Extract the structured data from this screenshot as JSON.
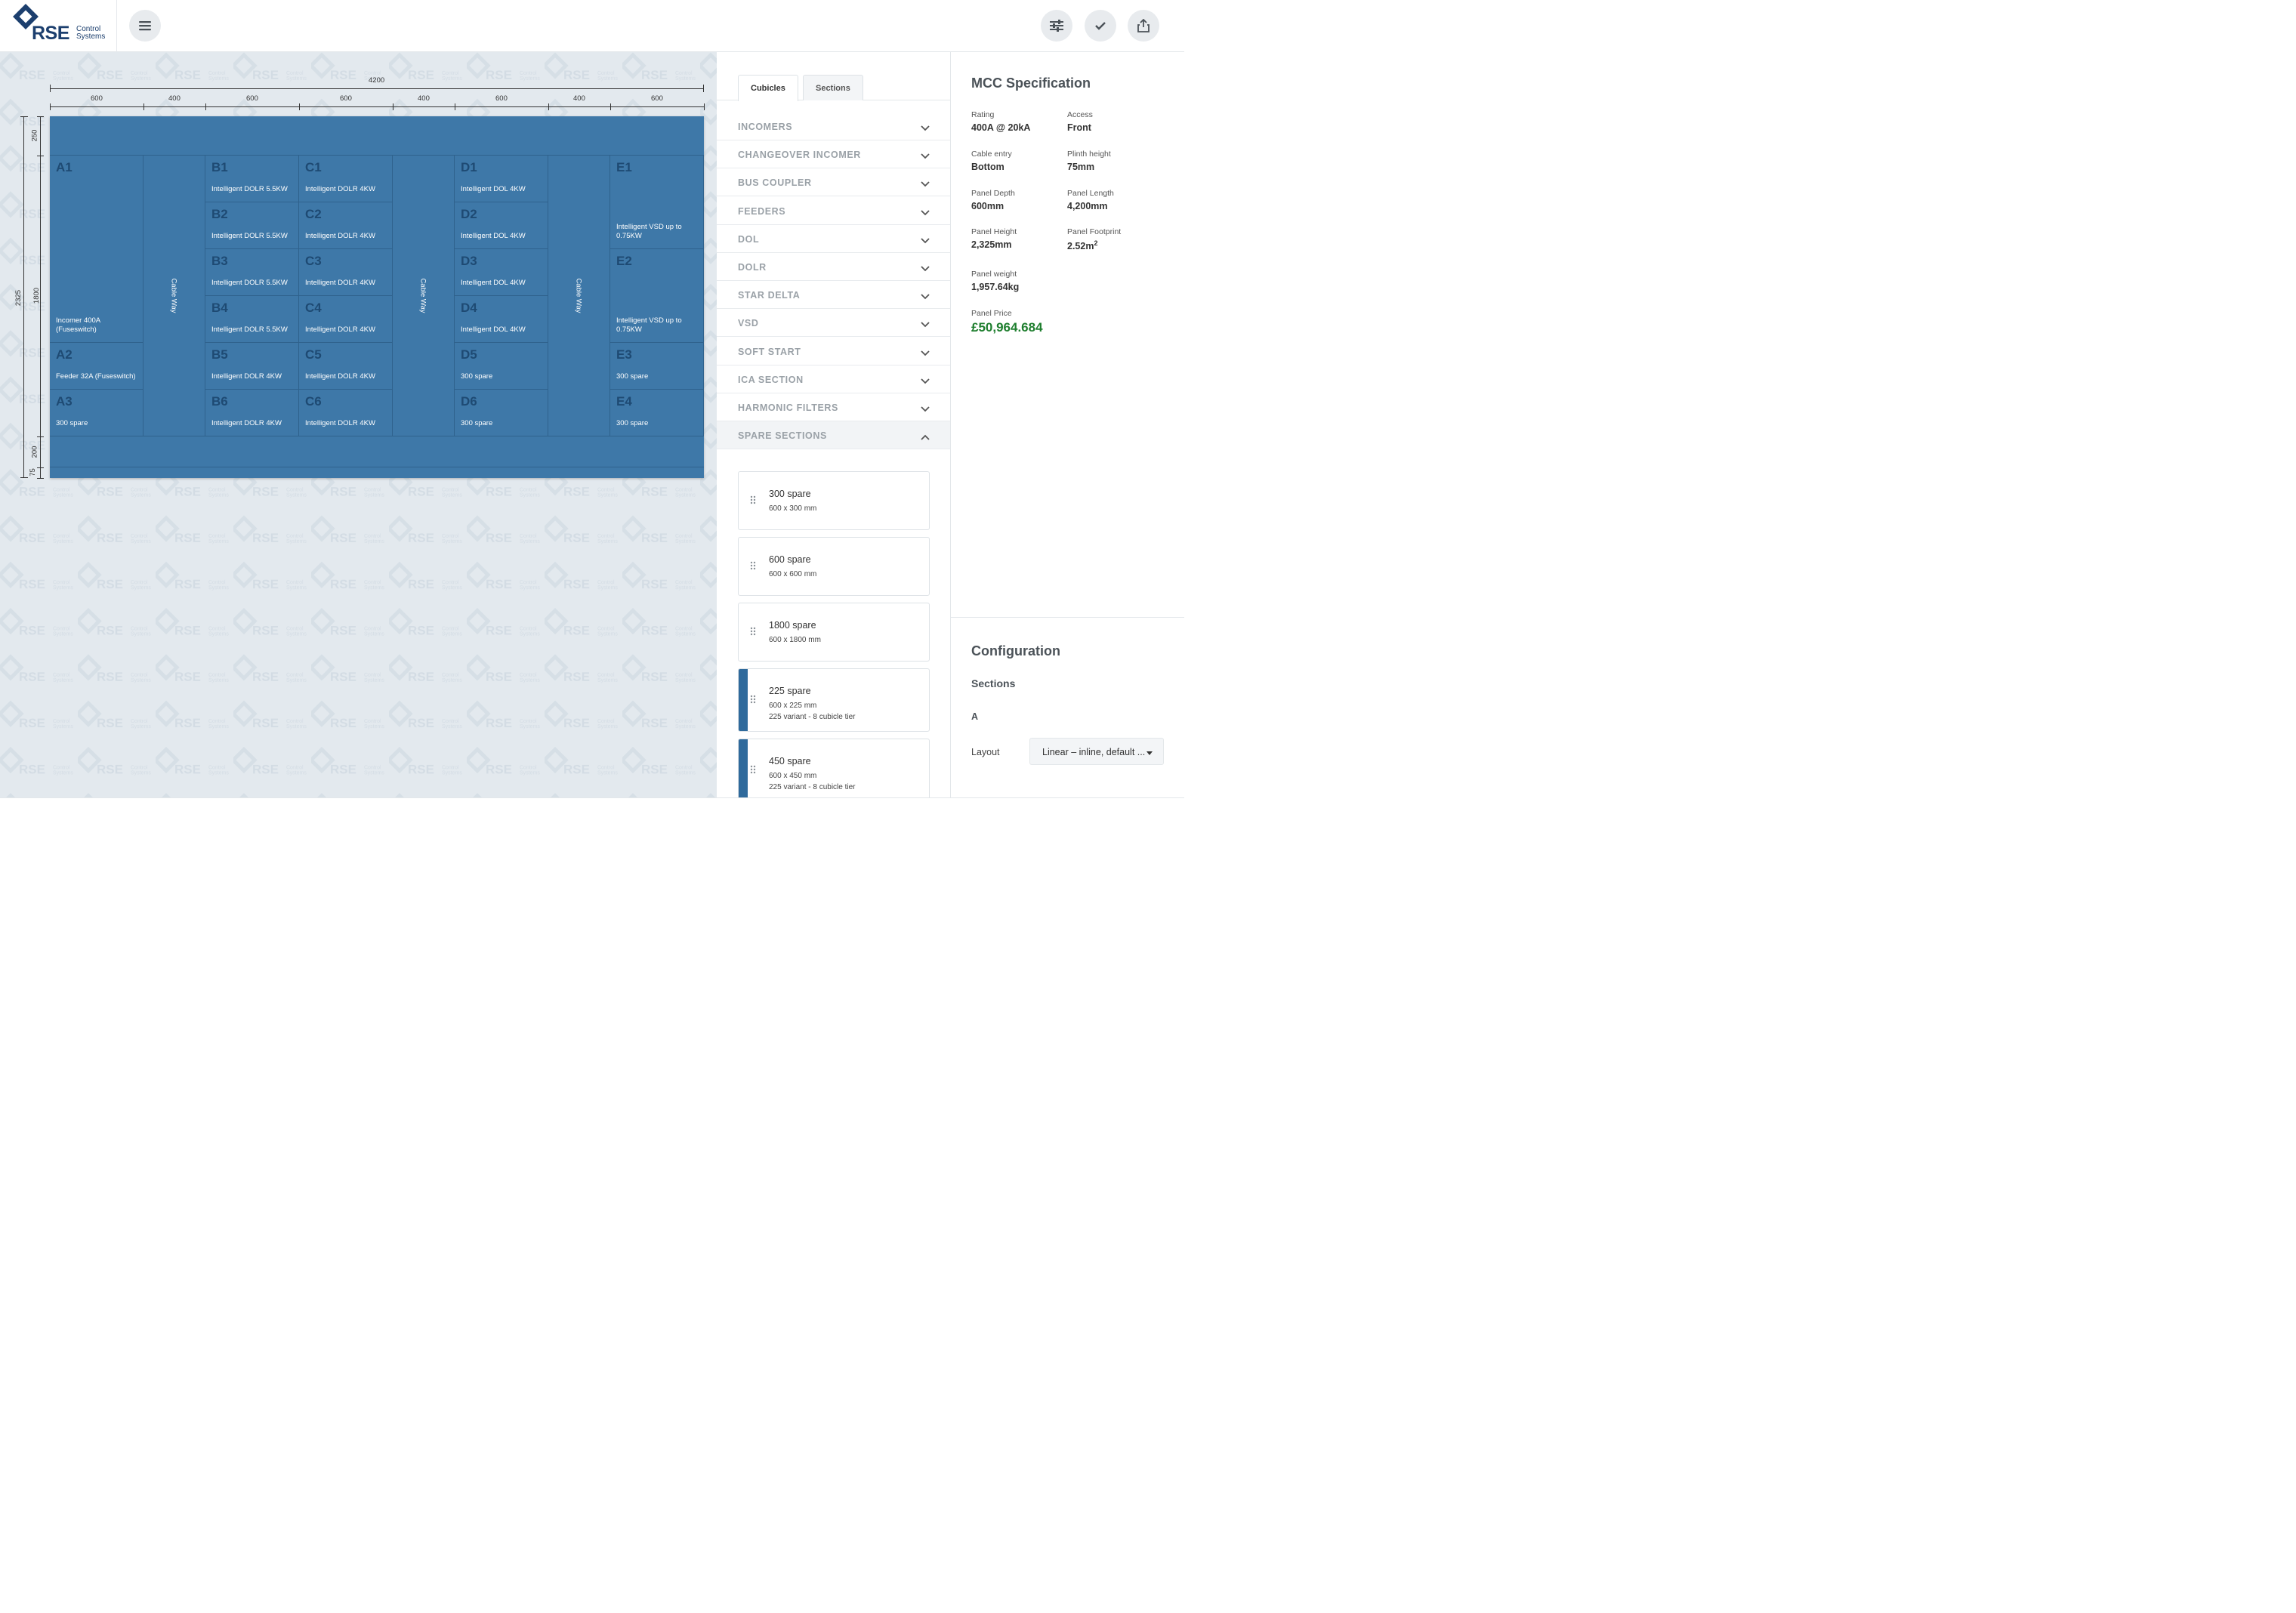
{
  "brand": {
    "name": "RSE",
    "subtitle_line1": "Control",
    "subtitle_line2": "Systems"
  },
  "toolbar": {
    "menu_icon": "hamburger-icon",
    "settings_icon": "sliders-icon",
    "confirm_icon": "checkmark-icon",
    "export_icon": "share-export-icon"
  },
  "watermark": {
    "text": "RSE",
    "subtext": "Control Systems"
  },
  "drawing": {
    "total_width": "4200",
    "column_widths": [
      "600",
      "400",
      "600",
      "600",
      "400",
      "600",
      "400",
      "600"
    ],
    "total_height": "2325",
    "heights": [
      "250",
      "1800",
      "200",
      "75"
    ],
    "cableway_label": "Cable Way",
    "cells": [
      {
        "name": "A1",
        "desc": "Incomer 400A (Fuseswitch)"
      },
      {
        "name": "A2",
        "desc": "Feeder 32A (Fuseswitch)"
      },
      {
        "name": "A3",
        "desc": "300 spare"
      },
      {
        "name": "B1",
        "desc": "Intelligent DOLR 5.5KW"
      },
      {
        "name": "B2",
        "desc": "Intelligent DOLR 5.5KW"
      },
      {
        "name": "B3",
        "desc": "Intelligent DOLR 5.5KW"
      },
      {
        "name": "B4",
        "desc": "Intelligent DOLR 5.5KW"
      },
      {
        "name": "B5",
        "desc": "Intelligent DOLR 4KW"
      },
      {
        "name": "B6",
        "desc": "Intelligent DOLR 4KW"
      },
      {
        "name": "C1",
        "desc": "Intelligent DOLR 4KW"
      },
      {
        "name": "C2",
        "desc": "Intelligent DOLR 4KW"
      },
      {
        "name": "C3",
        "desc": "Intelligent DOLR 4KW"
      },
      {
        "name": "C4",
        "desc": "Intelligent DOLR 4KW"
      },
      {
        "name": "C5",
        "desc": "Intelligent DOLR 4KW"
      },
      {
        "name": "C6",
        "desc": "Intelligent DOLR 4KW"
      },
      {
        "name": "D1",
        "desc": "Intelligent DOL 4KW"
      },
      {
        "name": "D2",
        "desc": "Intelligent DOL 4KW"
      },
      {
        "name": "D3",
        "desc": "Intelligent DOL 4KW"
      },
      {
        "name": "D4",
        "desc": "Intelligent DOL 4KW"
      },
      {
        "name": "D5",
        "desc": "300 spare"
      },
      {
        "name": "D6",
        "desc": "300 spare"
      },
      {
        "name": "E1",
        "desc": "Intelligent VSD up to 0.75KW"
      },
      {
        "name": "E2",
        "desc": "Intelligent VSD up to 0.75KW"
      },
      {
        "name": "E3",
        "desc": "300 spare"
      },
      {
        "name": "E4",
        "desc": "300 spare"
      }
    ]
  },
  "tabs": [
    {
      "label": "Cubicles",
      "active": true
    },
    {
      "label": "Sections",
      "active": false
    }
  ],
  "accordion": [
    {
      "label": "INCOMERS",
      "open": false
    },
    {
      "label": "CHANGEOVER INCOMER",
      "open": false
    },
    {
      "label": "BUS COUPLER",
      "open": false
    },
    {
      "label": "FEEDERS",
      "open": false
    },
    {
      "label": "DOL",
      "open": false
    },
    {
      "label": "DOLR",
      "open": false
    },
    {
      "label": "STAR DELTA",
      "open": false
    },
    {
      "label": "VSD",
      "open": false
    },
    {
      "label": "SOFT START",
      "open": false
    },
    {
      "label": "ICA SECTION",
      "open": false
    },
    {
      "label": "HARMONIC FILTERS",
      "open": false
    },
    {
      "label": "SPARE SECTIONS",
      "open": true
    }
  ],
  "spares": [
    {
      "title": "300 spare",
      "size": "600 x 300 mm",
      "variant": "",
      "highlight": false
    },
    {
      "title": "600 spare",
      "size": "600 x 600 mm",
      "variant": "",
      "highlight": false
    },
    {
      "title": "1800 spare",
      "size": "600 x 1800 mm",
      "variant": "",
      "highlight": false
    },
    {
      "title": "225 spare",
      "size": "600 x 225 mm",
      "variant": "225 variant - 8 cubicle tier",
      "highlight": true
    },
    {
      "title": "450 spare",
      "size": "600 x 450 mm",
      "variant": "225 variant - 8 cubicle tier",
      "highlight": true
    }
  ],
  "spec": {
    "title": "MCC Specification",
    "rating_label": "Rating",
    "rating": "400A @ 20kA",
    "access_label": "Access",
    "access": "Front",
    "cable_entry_label": "Cable entry",
    "cable_entry": "Bottom",
    "plinth_label": "Plinth height",
    "plinth": "75mm",
    "depth_label": "Panel Depth",
    "depth": "600mm",
    "length_label": "Panel Length",
    "length": "4,200mm",
    "height_label": "Panel Height",
    "height": "2,325mm",
    "footprint_label": "Panel Footprint",
    "footprint": "2.52m",
    "footprint_exp": "2",
    "weight_label": "Panel weight",
    "weight": "1,957.64kg",
    "price_label": "Panel Price",
    "price": "£50,964.684",
    "price_color": "#1e7e2e"
  },
  "configuration": {
    "title": "Configuration",
    "sections_label": "Sections",
    "section_name": "A",
    "layout_label": "Layout",
    "layout_value": "Linear – inline, default ..."
  },
  "colors": {
    "panel": "#3e78a8",
    "cell_label": "#1e4a73",
    "accent": "#2f6a9c"
  }
}
